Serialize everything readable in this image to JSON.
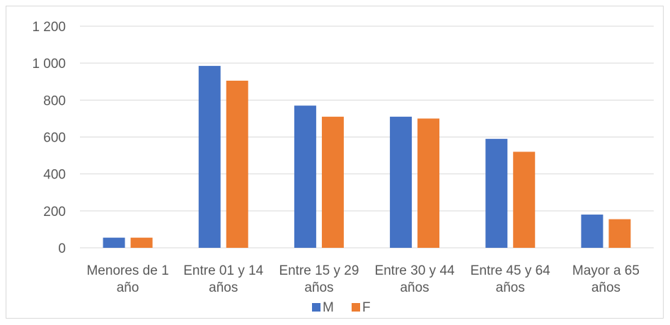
{
  "chart_data": {
    "type": "bar",
    "categories": [
      [
        "Menores de 1",
        "año"
      ],
      [
        "Entre 01 y 14",
        "años"
      ],
      [
        "Entre 15 y 29",
        "años"
      ],
      [
        "Entre 30 y 44",
        "años"
      ],
      [
        "Entre 45 y 64",
        "años"
      ],
      [
        "Mayor a 65",
        "años"
      ]
    ],
    "series": [
      {
        "name": "M",
        "color": "#4472c4",
        "values": [
          55,
          985,
          770,
          710,
          590,
          180
        ]
      },
      {
        "name": "F",
        "color": "#ed7d31",
        "values": [
          55,
          905,
          710,
          700,
          520,
          155
        ]
      }
    ],
    "ylim": [
      0,
      1200
    ],
    "yticks": [
      0,
      200,
      400,
      600,
      800,
      1000,
      1200
    ],
    "ytick_labels": [
      "0",
      "200",
      "400",
      "600",
      "800",
      "1 000",
      "1 200"
    ],
    "grid": true,
    "legend_position": "bottom"
  }
}
